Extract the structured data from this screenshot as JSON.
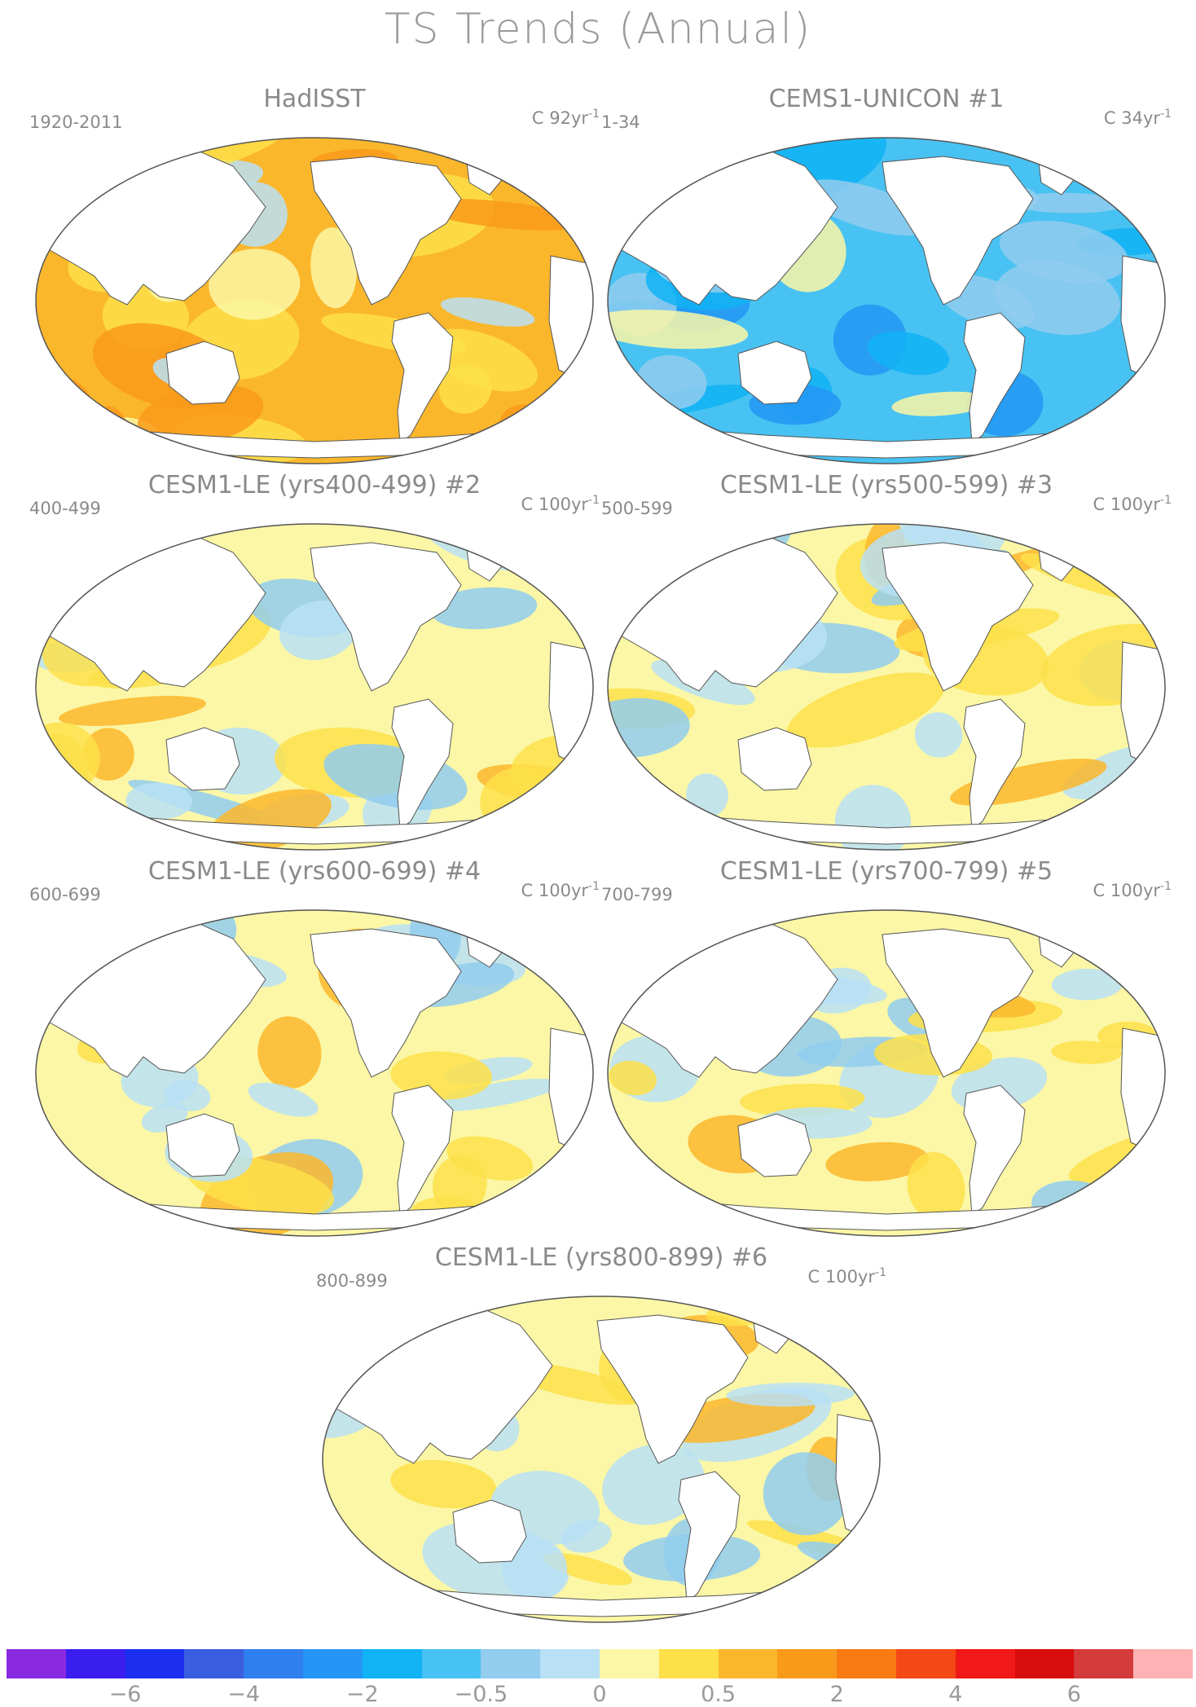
{
  "title": "TS Trends (Annual)",
  "panels": [
    {
      "title": "HadISST",
      "left_label": "1920-2011",
      "right_label": "C 92yr",
      "right_sup": "-1",
      "tone": "warm"
    },
    {
      "title": "CEMS1-UNICON          #1",
      "left_label": "1-34",
      "right_label": "C 34yr",
      "right_sup": "-1",
      "tone": "cool"
    },
    {
      "title": "CESM1-LE (yrs400-499) #2",
      "left_label": "400-499",
      "right_label": "C 100yr",
      "right_sup": "-1",
      "tone": "mixed"
    },
    {
      "title": "CESM1-LE (yrs500-599) #3",
      "left_label": "500-599",
      "right_label": "C 100yr",
      "right_sup": "-1",
      "tone": "mixed"
    },
    {
      "title": "CESM1-LE (yrs600-699) #4",
      "left_label": "600-699",
      "right_label": "C 100yr",
      "right_sup": "-1",
      "tone": "mixed"
    },
    {
      "title": "CESM1-LE (yrs700-799) #5",
      "left_label": "700-799",
      "right_label": "C 100yr",
      "right_sup": "-1",
      "tone": "mixed"
    },
    {
      "title": "CESM1-LE (yrs800-899) #6",
      "left_label": "800-899",
      "right_label": "C 100yr",
      "right_sup": "-1",
      "tone": "mixed"
    }
  ],
  "colorbar": {
    "colors": [
      "#8a2be2",
      "#3a1ef0",
      "#1c2ff0",
      "#3a5ee0",
      "#2f80ee",
      "#2596f5",
      "#11b3f5",
      "#48c2f2",
      "#92ccef",
      "#b9e0f5",
      "#fbf7a6",
      "#fde04a",
      "#fbb72c",
      "#f99a1b",
      "#f97b12",
      "#f44815",
      "#f01818",
      "#d80c0c",
      "#d43b3b",
      "#fdb3b3"
    ],
    "ticks": [
      "−6",
      "−4",
      "−2",
      "−0.5",
      "0",
      "0.5",
      "2",
      "4",
      "6"
    ]
  }
}
